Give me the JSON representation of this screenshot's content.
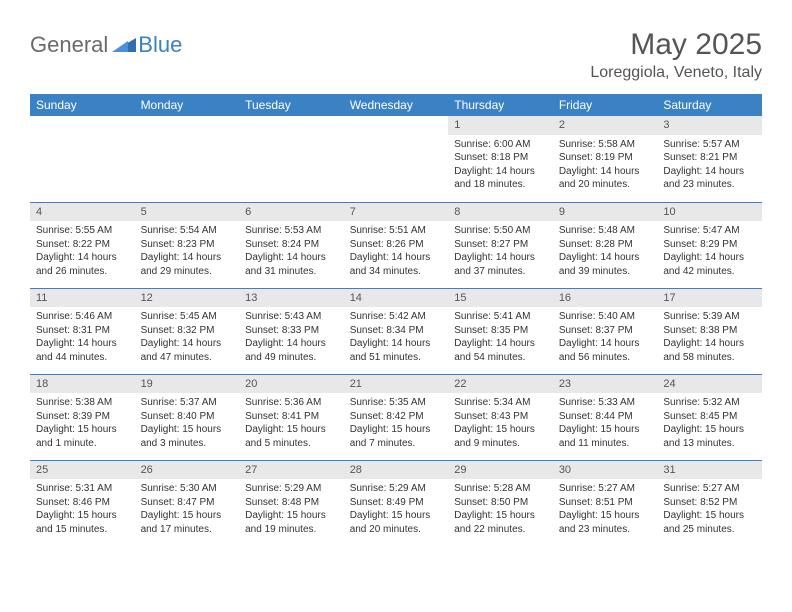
{
  "brand": {
    "general": "General",
    "blue": "Blue"
  },
  "title": "May 2025",
  "location": "Loreggiola, Veneto, Italy",
  "colors": {
    "header_bg": "#3b82c4",
    "header_text": "#ffffff",
    "daynum_bg": "#e8e8e8",
    "row_border": "#3b82c4",
    "text": "#333333",
    "title_text": "#555555"
  },
  "weekdays": [
    "Sunday",
    "Monday",
    "Tuesday",
    "Wednesday",
    "Thursday",
    "Friday",
    "Saturday"
  ],
  "weeks": [
    [
      null,
      null,
      null,
      null,
      {
        "n": "1",
        "sr": "6:00 AM",
        "ss": "8:18 PM",
        "dl": "14 hours and 18 minutes."
      },
      {
        "n": "2",
        "sr": "5:58 AM",
        "ss": "8:19 PM",
        "dl": "14 hours and 20 minutes."
      },
      {
        "n": "3",
        "sr": "5:57 AM",
        "ss": "8:21 PM",
        "dl": "14 hours and 23 minutes."
      }
    ],
    [
      {
        "n": "4",
        "sr": "5:55 AM",
        "ss": "8:22 PM",
        "dl": "14 hours and 26 minutes."
      },
      {
        "n": "5",
        "sr": "5:54 AM",
        "ss": "8:23 PM",
        "dl": "14 hours and 29 minutes."
      },
      {
        "n": "6",
        "sr": "5:53 AM",
        "ss": "8:24 PM",
        "dl": "14 hours and 31 minutes."
      },
      {
        "n": "7",
        "sr": "5:51 AM",
        "ss": "8:26 PM",
        "dl": "14 hours and 34 minutes."
      },
      {
        "n": "8",
        "sr": "5:50 AM",
        "ss": "8:27 PM",
        "dl": "14 hours and 37 minutes."
      },
      {
        "n": "9",
        "sr": "5:48 AM",
        "ss": "8:28 PM",
        "dl": "14 hours and 39 minutes."
      },
      {
        "n": "10",
        "sr": "5:47 AM",
        "ss": "8:29 PM",
        "dl": "14 hours and 42 minutes."
      }
    ],
    [
      {
        "n": "11",
        "sr": "5:46 AM",
        "ss": "8:31 PM",
        "dl": "14 hours and 44 minutes."
      },
      {
        "n": "12",
        "sr": "5:45 AM",
        "ss": "8:32 PM",
        "dl": "14 hours and 47 minutes."
      },
      {
        "n": "13",
        "sr": "5:43 AM",
        "ss": "8:33 PM",
        "dl": "14 hours and 49 minutes."
      },
      {
        "n": "14",
        "sr": "5:42 AM",
        "ss": "8:34 PM",
        "dl": "14 hours and 51 minutes."
      },
      {
        "n": "15",
        "sr": "5:41 AM",
        "ss": "8:35 PM",
        "dl": "14 hours and 54 minutes."
      },
      {
        "n": "16",
        "sr": "5:40 AM",
        "ss": "8:37 PM",
        "dl": "14 hours and 56 minutes."
      },
      {
        "n": "17",
        "sr": "5:39 AM",
        "ss": "8:38 PM",
        "dl": "14 hours and 58 minutes."
      }
    ],
    [
      {
        "n": "18",
        "sr": "5:38 AM",
        "ss": "8:39 PM",
        "dl": "15 hours and 1 minute."
      },
      {
        "n": "19",
        "sr": "5:37 AM",
        "ss": "8:40 PM",
        "dl": "15 hours and 3 minutes."
      },
      {
        "n": "20",
        "sr": "5:36 AM",
        "ss": "8:41 PM",
        "dl": "15 hours and 5 minutes."
      },
      {
        "n": "21",
        "sr": "5:35 AM",
        "ss": "8:42 PM",
        "dl": "15 hours and 7 minutes."
      },
      {
        "n": "22",
        "sr": "5:34 AM",
        "ss": "8:43 PM",
        "dl": "15 hours and 9 minutes."
      },
      {
        "n": "23",
        "sr": "5:33 AM",
        "ss": "8:44 PM",
        "dl": "15 hours and 11 minutes."
      },
      {
        "n": "24",
        "sr": "5:32 AM",
        "ss": "8:45 PM",
        "dl": "15 hours and 13 minutes."
      }
    ],
    [
      {
        "n": "25",
        "sr": "5:31 AM",
        "ss": "8:46 PM",
        "dl": "15 hours and 15 minutes."
      },
      {
        "n": "26",
        "sr": "5:30 AM",
        "ss": "8:47 PM",
        "dl": "15 hours and 17 minutes."
      },
      {
        "n": "27",
        "sr": "5:29 AM",
        "ss": "8:48 PM",
        "dl": "15 hours and 19 minutes."
      },
      {
        "n": "28",
        "sr": "5:29 AM",
        "ss": "8:49 PM",
        "dl": "15 hours and 20 minutes."
      },
      {
        "n": "29",
        "sr": "5:28 AM",
        "ss": "8:50 PM",
        "dl": "15 hours and 22 minutes."
      },
      {
        "n": "30",
        "sr": "5:27 AM",
        "ss": "8:51 PM",
        "dl": "15 hours and 23 minutes."
      },
      {
        "n": "31",
        "sr": "5:27 AM",
        "ss": "8:52 PM",
        "dl": "15 hours and 25 minutes."
      }
    ]
  ],
  "labels": {
    "sunrise": "Sunrise: ",
    "sunset": "Sunset: ",
    "daylight": "Daylight: "
  }
}
